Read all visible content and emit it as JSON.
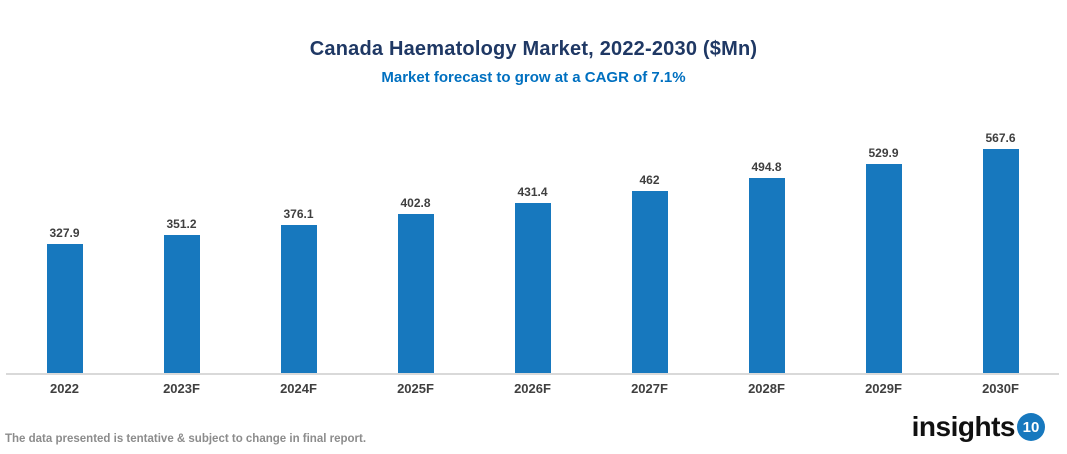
{
  "chart_data": {
    "type": "bar",
    "title": "Canada Haematology Market, 2022-2030 ($Mn)",
    "subtitle": "Market forecast to grow at a CAGR of 7.1%",
    "categories": [
      "2022",
      "2023F",
      "2024F",
      "2025F",
      "2026F",
      "2027F",
      "2028F",
      "2029F",
      "2030F"
    ],
    "values": [
      327.9,
      351.2,
      376.1,
      402.8,
      431.4,
      462,
      494.8,
      529.9,
      567.6
    ],
    "value_labels": [
      "327.9",
      "351.2",
      "376.1",
      "402.8",
      "431.4",
      "462",
      "494.8",
      "529.9",
      "567.6"
    ],
    "xlabel": "",
    "ylabel": "",
    "ylim": [
      0,
      640
    ],
    "grid": false,
    "legend": "none",
    "bar_color": "#1778BE",
    "title_color": "#1F3864",
    "subtitle_color": "#0070C0",
    "axis_line_color": "#D9D9D9",
    "label_color": "#3F3F3F"
  },
  "footer": {
    "disclaimer": "The data presented is tentative & subject to change in final report."
  },
  "logo": {
    "text": "insights",
    "badge": "10",
    "badge_color": "#1778BE"
  }
}
